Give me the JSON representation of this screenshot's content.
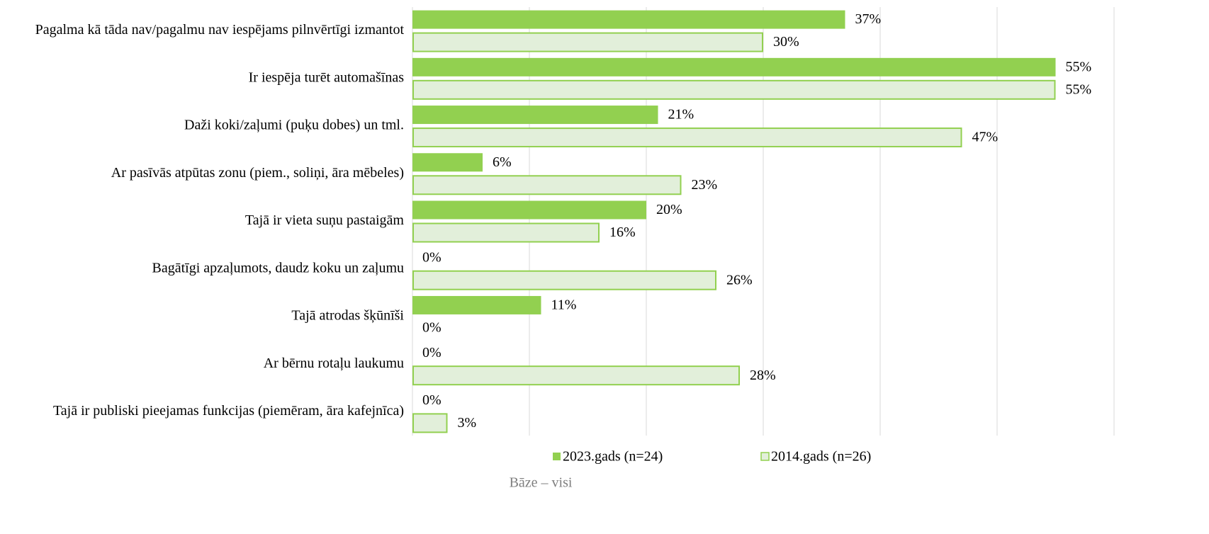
{
  "chart_data": {
    "type": "hbar",
    "categories": [
      "Pagalma kā tāda nav/pagalmu nav iespējams pilnvērtīgi izmantot",
      "Ir iespēja turēt automašīnas",
      "Daži koki/zaļumi (puķu dobes) un tml.",
      "Ar pasīvās atpūtas zonu (piem., soliņi, āra mēbeles)",
      "Tajā ir vieta suņu pastaigām",
      "Bagātīgi apzaļumots, daudz koku un zaļumu",
      "Tajā atrodas šķūnīši",
      "Ar bērnu rotaļu laukumu",
      "Tajā ir publiski pieejamas funkcijas (piemēram, āra kafejnīca)"
    ],
    "series": [
      {
        "name": "2023.gads (n=24)",
        "color": "#92d050",
        "values": [
          37,
          55,
          21,
          6,
          20,
          0,
          11,
          0,
          0
        ],
        "value_labels": [
          "37%",
          "55%",
          "21%",
          "6%",
          "20%",
          "0%",
          "11%",
          "0%",
          "0%"
        ]
      },
      {
        "name": "2014.gads (n=26)",
        "color": "#e2efda",
        "stroke": "#92d050",
        "values": [
          30,
          55,
          47,
          23,
          16,
          26,
          0,
          28,
          3
        ],
        "value_labels": [
          "30%",
          "55%",
          "47%",
          "23%",
          "16%",
          "26%",
          "0%",
          "28%",
          "3%"
        ]
      }
    ],
    "xlim": [
      0,
      60
    ],
    "xticks": [
      0,
      10,
      20,
      30,
      40,
      50,
      60
    ],
    "grid": true,
    "legend": "bottom",
    "footnote": "Bāze – visi"
  }
}
